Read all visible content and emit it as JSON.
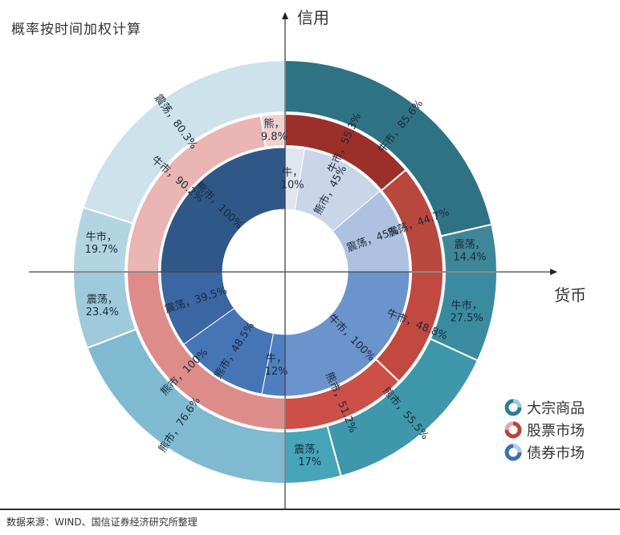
{
  "title": "概率按时间加权计算",
  "axes": {
    "y_label": "信用",
    "x_label": "货币"
  },
  "legend": [
    {
      "label": "大宗商品",
      "color": "#2e7d8f"
    },
    {
      "label": "股票市场",
      "color": "#b5453c"
    },
    {
      "label": "债券市场",
      "color": "#3f6fb0"
    }
  ],
  "source": "数据来源：WIND、国信证券经济研究所整理",
  "chart_data": {
    "type": "sunburst-quadrant-donut",
    "title": "概率按时间加权计算",
    "xlabel": "货币",
    "ylabel": "信用",
    "rings": [
      "债券市场 (inner)",
      "股票市场 (middle)",
      "大宗商品 (outer)"
    ],
    "quadrants": [
      {
        "position": "top-right",
        "outer": [
          {
            "label": "牛市",
            "value": 85.6,
            "color": "#2f7283"
          },
          {
            "label": "震荡",
            "value": 14.4,
            "color": "#3d8798"
          }
        ],
        "middle": [
          {
            "label": "牛市",
            "value": 55.3,
            "color": "#9b2f2a"
          },
          {
            "label": "震荡",
            "value": 44.7,
            "color": "#b8473e"
          }
        ],
        "inner": [
          {
            "label": "牛",
            "value": 10,
            "color": "#dfe6f0"
          },
          {
            "label": "熊市",
            "value": 45,
            "color": "#c9d5e9"
          },
          {
            "label": "震荡",
            "value": 45,
            "color": "#aec1e0"
          }
        ]
      },
      {
        "position": "bottom-right",
        "outer": [
          {
            "label": "牛市",
            "value": 27.5,
            "color": "#3a8ba0"
          },
          {
            "label": "熊市",
            "value": 55.5,
            "color": "#3f97ab"
          },
          {
            "label": "震荡",
            "value": 17,
            "color": "#47a5ba"
          }
        ],
        "middle": [
          {
            "label": "牛市",
            "value": 48.8,
            "color": "#c2493f"
          },
          {
            "label": "熊市",
            "value": 51.2,
            "color": "#cc5048"
          }
        ],
        "inner": [
          {
            "label": "牛市",
            "value": 100,
            "color": "#6b93cc"
          }
        ]
      },
      {
        "position": "bottom-left",
        "outer": [
          {
            "label": "熊市",
            "value": 76.6,
            "color": "#7fbad0"
          },
          {
            "label": "震荡",
            "value": 23.4,
            "color": "#9ecadb"
          }
        ],
        "middle": [
          {
            "label": "熊市",
            "value": 100,
            "color": "#de8c8a"
          }
        ],
        "inner": [
          {
            "label": "牛",
            "value": 12,
            "color": "#4f7fc0"
          },
          {
            "label": "熊市",
            "value": 48.5,
            "color": "#4575b5"
          },
          {
            "label": "震荡",
            "value": 39.5,
            "color": "#3a66a3"
          }
        ]
      },
      {
        "position": "top-left",
        "outer": [
          {
            "label": "牛市",
            "value": 19.7,
            "color": "#b3d4e1"
          },
          {
            "label": "震荡",
            "value": 80.3,
            "color": "#cde2eb"
          }
        ],
        "middle": [
          {
            "label": "牛市",
            "value": 90.2,
            "color": "#eab5b3"
          },
          {
            "label": "熊",
            "value": 9.8,
            "color": "#f1d0cf"
          }
        ],
        "inner": [
          {
            "label": "熊市",
            "value": 100,
            "color": "#2f5889"
          }
        ]
      }
    ]
  }
}
